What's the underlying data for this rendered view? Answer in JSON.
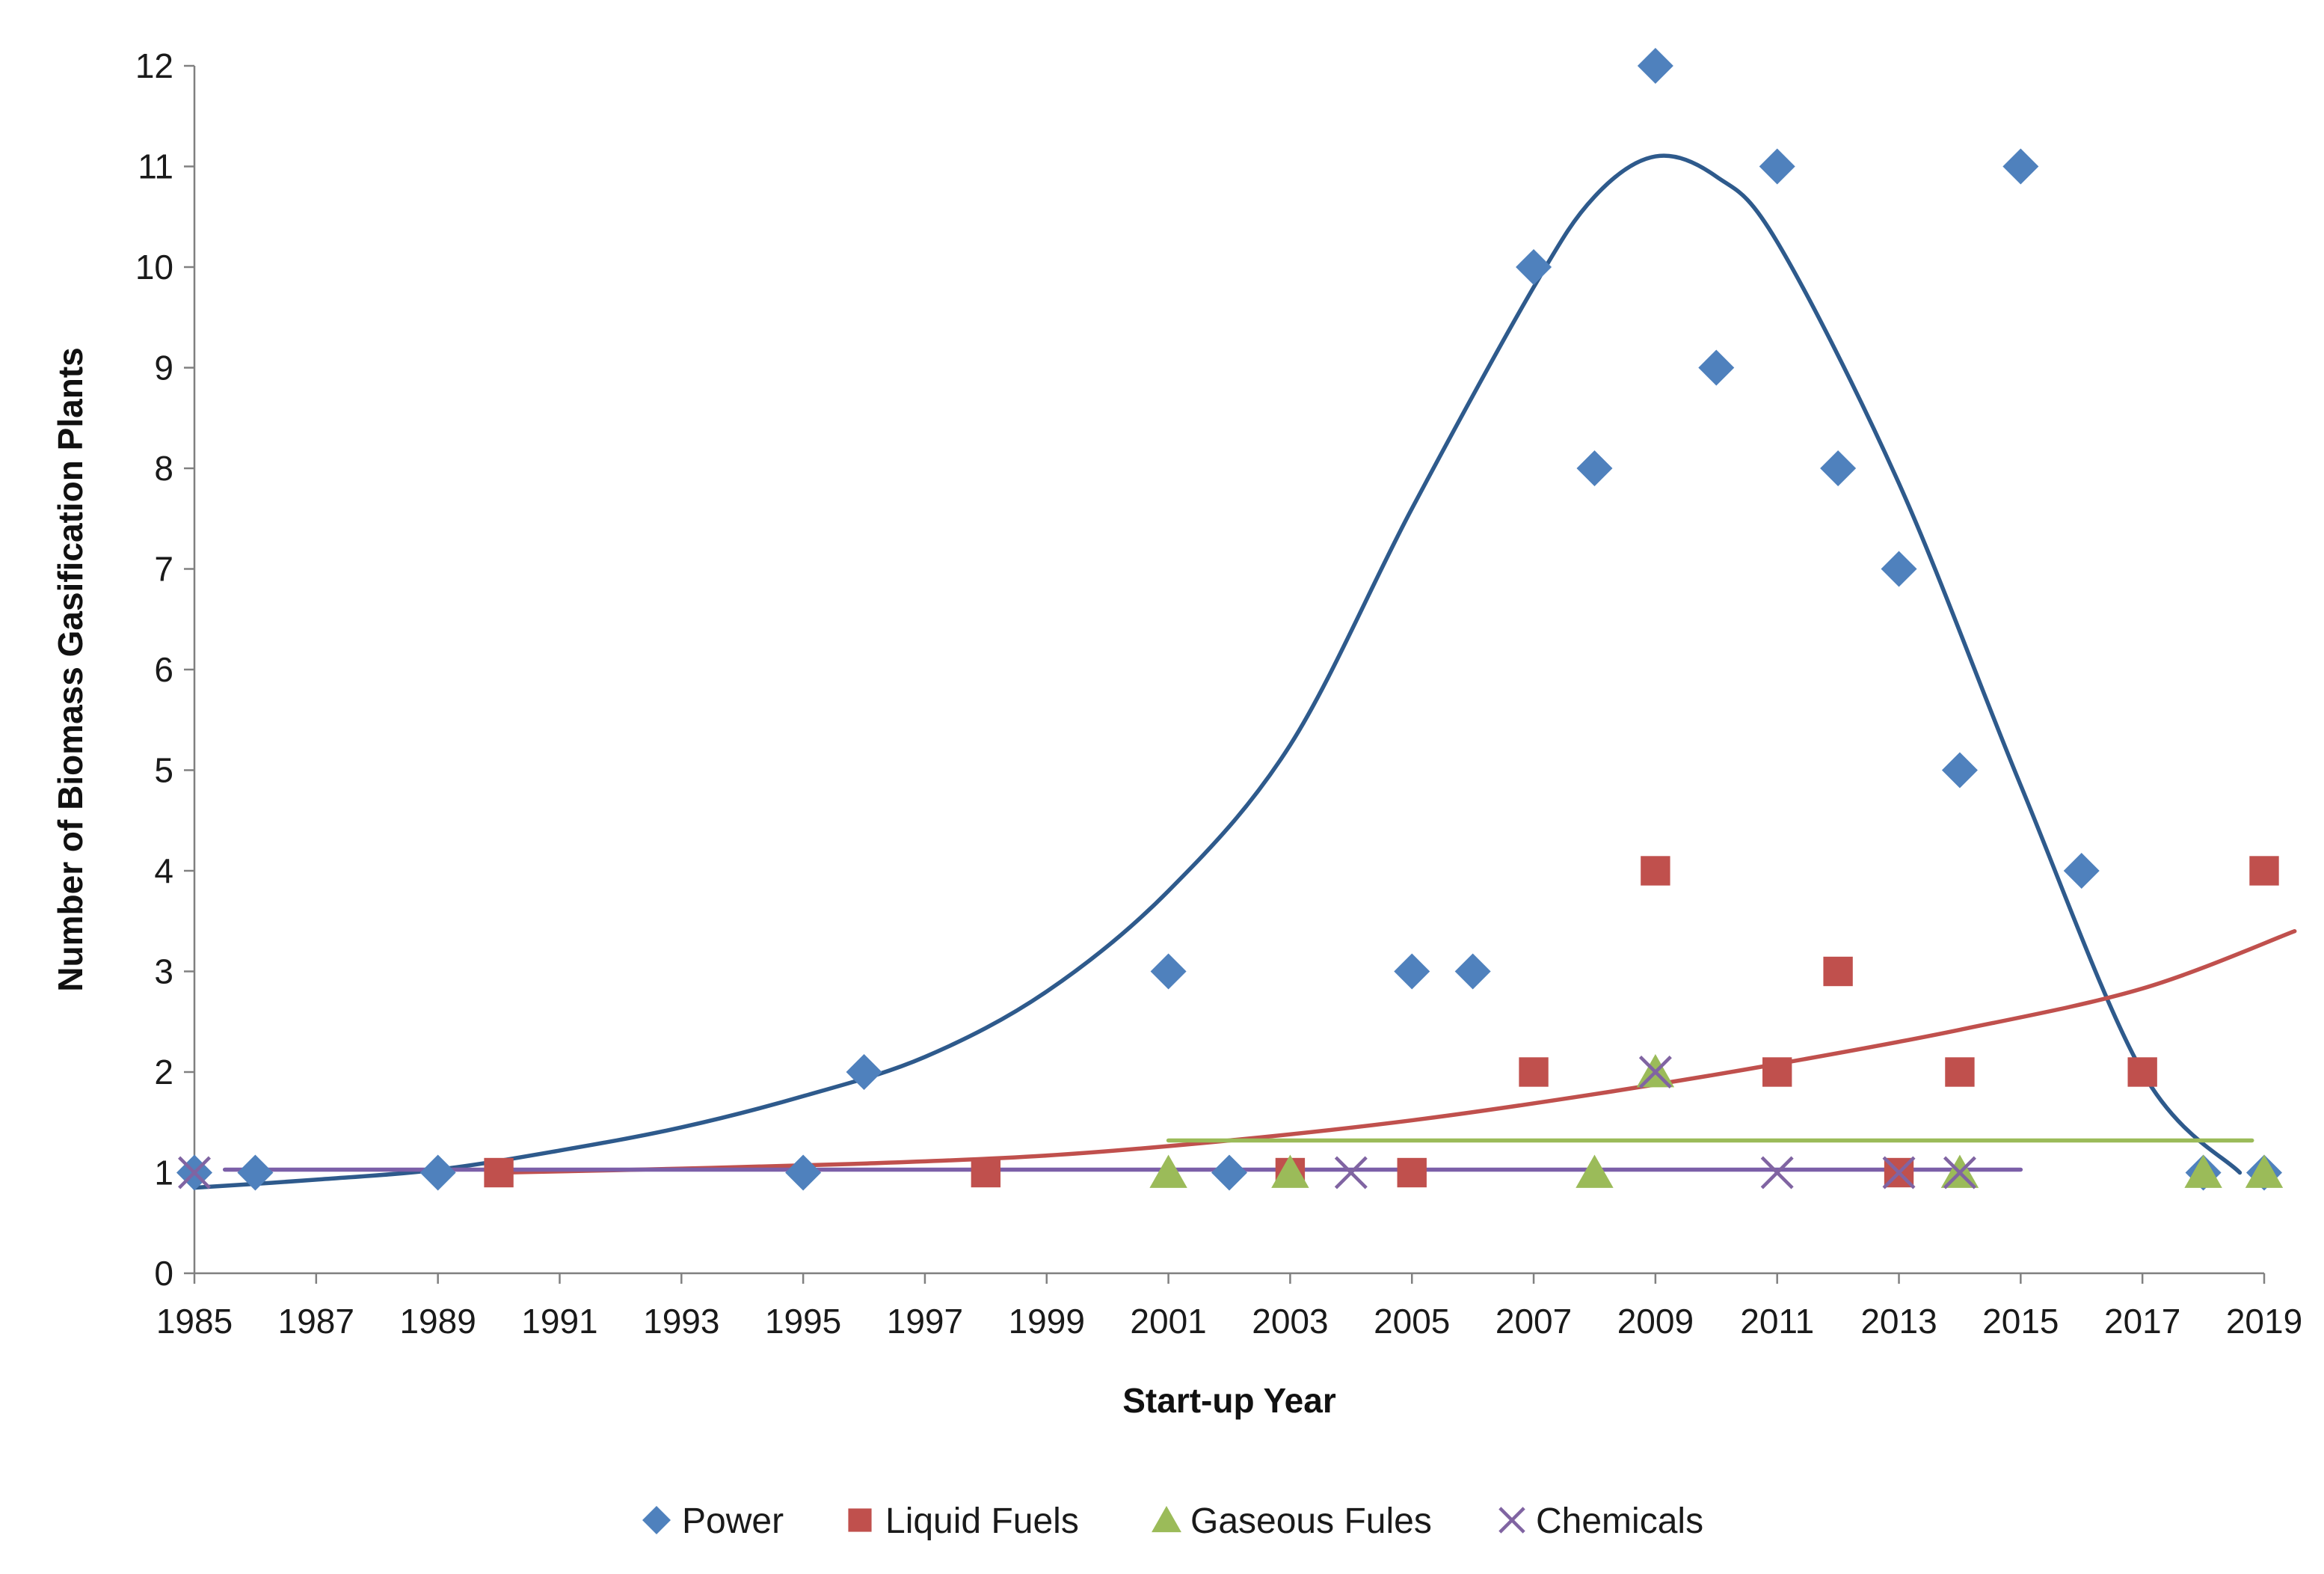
{
  "chart_data": {
    "type": "scatter",
    "title": "",
    "xlabel": "Start-up Year",
    "ylabel": "Number of Biomass Gasification Plants",
    "xlim": [
      1985,
      2019
    ],
    "ylim": [
      0,
      12
    ],
    "x_ticks": [
      1985,
      1987,
      1989,
      1991,
      1993,
      1995,
      1997,
      1999,
      2001,
      2003,
      2005,
      2007,
      2009,
      2011,
      2013,
      2015,
      2017,
      2019
    ],
    "y_ticks": [
      0,
      1,
      2,
      3,
      4,
      5,
      6,
      7,
      8,
      9,
      10,
      11,
      12
    ],
    "grid": false,
    "legend_position": "bottom",
    "series": [
      {
        "name": "Power",
        "marker": "diamond",
        "color": "#4F81BD",
        "trend_color": "#2E5A8C",
        "points": [
          [
            1985,
            1
          ],
          [
            1986,
            1
          ],
          [
            1989,
            1
          ],
          [
            1995,
            1
          ],
          [
            1996,
            2
          ],
          [
            2001,
            3
          ],
          [
            2002,
            1
          ],
          [
            2005,
            3
          ],
          [
            2006,
            3
          ],
          [
            2007,
            10
          ],
          [
            2008,
            8
          ],
          [
            2009,
            12
          ],
          [
            2010,
            9
          ],
          [
            2011,
            11
          ],
          [
            2012,
            8
          ],
          [
            2013,
            7
          ],
          [
            2014,
            5
          ],
          [
            2015,
            11
          ],
          [
            2016,
            4
          ],
          [
            2018,
            1
          ],
          [
            2019,
            1
          ]
        ],
        "trend": [
          [
            1985,
            0.85
          ],
          [
            1987,
            0.93
          ],
          [
            1989,
            1.03
          ],
          [
            1991,
            1.22
          ],
          [
            1993,
            1.45
          ],
          [
            1995,
            1.76
          ],
          [
            1997,
            2.15
          ],
          [
            1999,
            2.8
          ],
          [
            2001,
            3.8
          ],
          [
            2003,
            5.25
          ],
          [
            2005,
            7.6
          ],
          [
            2007,
            9.8
          ],
          [
            2008,
            10.7
          ],
          [
            2009,
            11.1
          ],
          [
            2010,
            10.9
          ],
          [
            2011,
            10.25
          ],
          [
            2013,
            7.85
          ],
          [
            2015,
            4.85
          ],
          [
            2017,
            2.0
          ],
          [
            2018.6,
            1.0
          ]
        ]
      },
      {
        "name": "Liquid Fuels",
        "marker": "square",
        "color": "#C0504D",
        "trend_color": "#C0504D",
        "points": [
          [
            1990,
            1
          ],
          [
            1998,
            1
          ],
          [
            2003,
            1
          ],
          [
            2005,
            1
          ],
          [
            2007,
            2
          ],
          [
            2009,
            4
          ],
          [
            2011,
            2
          ],
          [
            2012,
            3
          ],
          [
            2013,
            1
          ],
          [
            2014,
            2
          ],
          [
            2017,
            2
          ],
          [
            2019,
            4
          ]
        ],
        "trend": [
          [
            1990,
            1.0
          ],
          [
            1993,
            1.04
          ],
          [
            1996,
            1.09
          ],
          [
            1999,
            1.17
          ],
          [
            2002,
            1.32
          ],
          [
            2005,
            1.52
          ],
          [
            2008,
            1.78
          ],
          [
            2011,
            2.08
          ],
          [
            2014,
            2.42
          ],
          [
            2017,
            2.83
          ],
          [
            2019.5,
            3.4
          ]
        ]
      },
      {
        "name": "Gaseous Fules",
        "marker": "triangle",
        "color": "#9BBB59",
        "trend_color": "#9BBB59",
        "points": [
          [
            2001,
            1
          ],
          [
            2003,
            1
          ],
          [
            2008,
            1
          ],
          [
            2009,
            2
          ],
          [
            2014,
            1
          ],
          [
            2018,
            1
          ],
          [
            2019,
            1
          ]
        ],
        "trend": [
          [
            2001,
            1.32
          ],
          [
            2018.8,
            1.32
          ]
        ]
      },
      {
        "name": "Chemicals",
        "marker": "x",
        "color": "#8064A2",
        "trend_color": "#7B5FA8",
        "points": [
          [
            1985,
            1
          ],
          [
            2004,
            1
          ],
          [
            2009,
            2
          ],
          [
            2011,
            1
          ],
          [
            2013,
            1
          ],
          [
            2014,
            1
          ]
        ],
        "trend": [
          [
            1985.5,
            1.03
          ],
          [
            2015,
            1.03
          ]
        ]
      }
    ]
  }
}
